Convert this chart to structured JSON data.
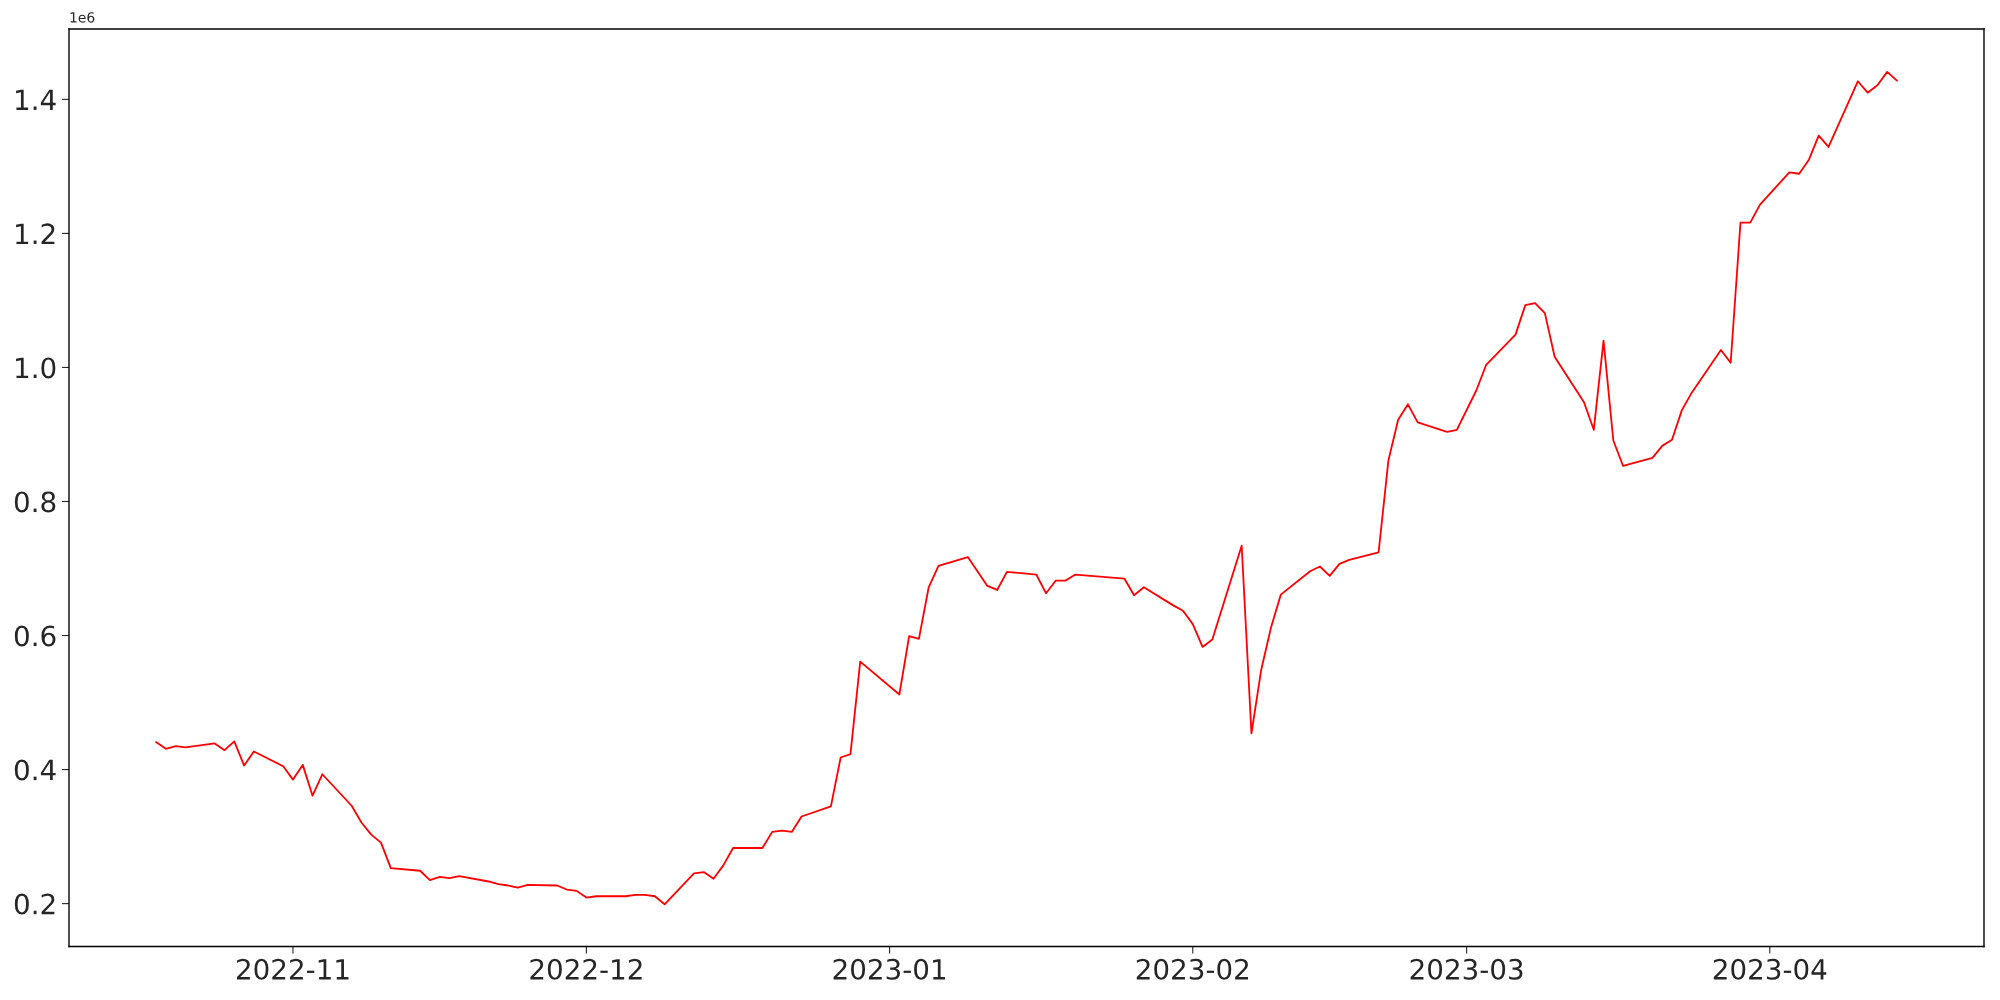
{
  "chart_data": {
    "type": "line",
    "x": [
      "2022-10-18",
      "2022-10-19",
      "2022-10-20",
      "2022-10-21",
      "2022-10-24",
      "2022-10-25",
      "2022-10-26",
      "2022-10-27",
      "2022-10-28",
      "2022-10-31",
      "2022-11-01",
      "2022-11-02",
      "2022-11-03",
      "2022-11-04",
      "2022-11-07",
      "2022-11-08",
      "2022-11-09",
      "2022-11-10",
      "2022-11-11",
      "2022-11-14",
      "2022-11-15",
      "2022-11-16",
      "2022-11-17",
      "2022-11-18",
      "2022-11-21",
      "2022-11-22",
      "2022-11-23",
      "2022-11-24",
      "2022-11-25",
      "2022-11-28",
      "2022-11-29",
      "2022-11-30",
      "2022-12-01",
      "2022-12-02",
      "2022-12-05",
      "2022-12-06",
      "2022-12-07",
      "2022-12-08",
      "2022-12-09",
      "2022-12-12",
      "2022-12-13",
      "2022-12-14",
      "2022-12-15",
      "2022-12-16",
      "2022-12-19",
      "2022-12-20",
      "2022-12-21",
      "2022-12-22",
      "2022-12-23",
      "2022-12-26",
      "2022-12-27",
      "2022-12-28",
      "2022-12-29",
      "2023-01-02",
      "2023-01-03",
      "2023-01-04",
      "2023-01-05",
      "2023-01-06",
      "2023-01-09",
      "2023-01-11",
      "2023-01-12",
      "2023-01-13",
      "2023-01-16",
      "2023-01-17",
      "2023-01-18",
      "2023-01-19",
      "2023-01-20",
      "2023-01-25",
      "2023-01-26",
      "2023-01-27",
      "2023-01-30",
      "2023-01-31",
      "2023-02-01",
      "2023-02-02",
      "2023-02-03",
      "2023-02-06",
      "2023-02-07",
      "2023-02-08",
      "2023-02-09",
      "2023-02-10",
      "2023-02-13",
      "2023-02-14",
      "2023-02-15",
      "2023-02-16",
      "2023-02-17",
      "2023-02-20",
      "2023-02-21",
      "2023-02-22",
      "2023-02-23",
      "2023-02-24",
      "2023-02-27",
      "2023-02-28",
      "2023-03-02",
      "2023-03-03",
      "2023-03-06",
      "2023-03-07",
      "2023-03-08",
      "2023-03-09",
      "2023-03-10",
      "2023-03-13",
      "2023-03-14",
      "2023-03-15",
      "2023-03-16",
      "2023-03-17",
      "2023-03-20",
      "2023-03-21",
      "2023-03-22",
      "2023-03-23",
      "2023-03-24",
      "2023-03-27",
      "2023-03-28",
      "2023-03-29",
      "2023-03-30",
      "2023-03-31",
      "2023-04-03",
      "2023-04-04",
      "2023-04-05",
      "2023-04-06",
      "2023-04-07",
      "2023-04-10",
      "2023-04-11",
      "2023-04-12",
      "2023-04-13",
      "2023-04-14"
    ],
    "series": [
      {
        "color": "#ff0000",
        "values": [
          0.441,
          0.431,
          0.435,
          0.433,
          0.439,
          0.429,
          0.442,
          0.406,
          0.427,
          0.405,
          0.385,
          0.407,
          0.361,
          0.393,
          0.346,
          0.321,
          0.303,
          0.291,
          0.253,
          0.249,
          0.235,
          0.24,
          0.238,
          0.241,
          0.233,
          0.229,
          0.227,
          0.224,
          0.228,
          0.227,
          0.221,
          0.219,
          0.209,
          0.211,
          0.211,
          0.213,
          0.213,
          0.211,
          0.199,
          0.245,
          0.247,
          0.237,
          0.257,
          0.283,
          0.283,
          0.307,
          0.309,
          0.307,
          0.33,
          0.345,
          0.418,
          0.423,
          0.561,
          0.512,
          0.599,
          0.595,
          0.672,
          0.704,
          0.717,
          0.674,
          0.668,
          0.695,
          0.691,
          0.663,
          0.682,
          0.682,
          0.691,
          0.685,
          0.66,
          0.672,
          0.645,
          0.637,
          0.617,
          0.583,
          0.594,
          0.734,
          0.454,
          0.549,
          0.612,
          0.661,
          0.696,
          0.703,
          0.689,
          0.707,
          0.713,
          0.724,
          0.861,
          0.922,
          0.945,
          0.918,
          0.904,
          0.907,
          0.966,
          1.004,
          1.049,
          1.093,
          1.096,
          1.081,
          1.016,
          0.948,
          0.907,
          1.04,
          0.891,
          0.853,
          0.865,
          0.883,
          0.892,
          0.936,
          0.962,
          1.026,
          1.007,
          1.216,
          1.216,
          1.243,
          1.291,
          1.289,
          1.31,
          1.346,
          1.329,
          1.427,
          1.41,
          1.421,
          1.441,
          1.428
        ]
      }
    ],
    "xlim": [
      "2022-10-09T02:24",
      "2023-04-22T21:36"
    ],
    "xticks": [
      {
        "value": "2022-11-01",
        "label": "2022-11"
      },
      {
        "value": "2022-12-01",
        "label": "2022-12"
      },
      {
        "value": "2023-01-01",
        "label": "2023-01"
      },
      {
        "value": "2023-02-01",
        "label": "2023-02"
      },
      {
        "value": "2023-03-01",
        "label": "2023-03"
      },
      {
        "value": "2023-04-01",
        "label": "2023-04"
      }
    ],
    "ylim": [
      0.136,
      1.505
    ],
    "yticks": [
      0.2,
      0.4,
      0.6,
      0.8,
      {
        "value": 1,
        "label": "1.0"
      },
      1.2,
      1.4
    ],
    "annotations": [
      "1e6"
    ],
    "grid": false
  }
}
